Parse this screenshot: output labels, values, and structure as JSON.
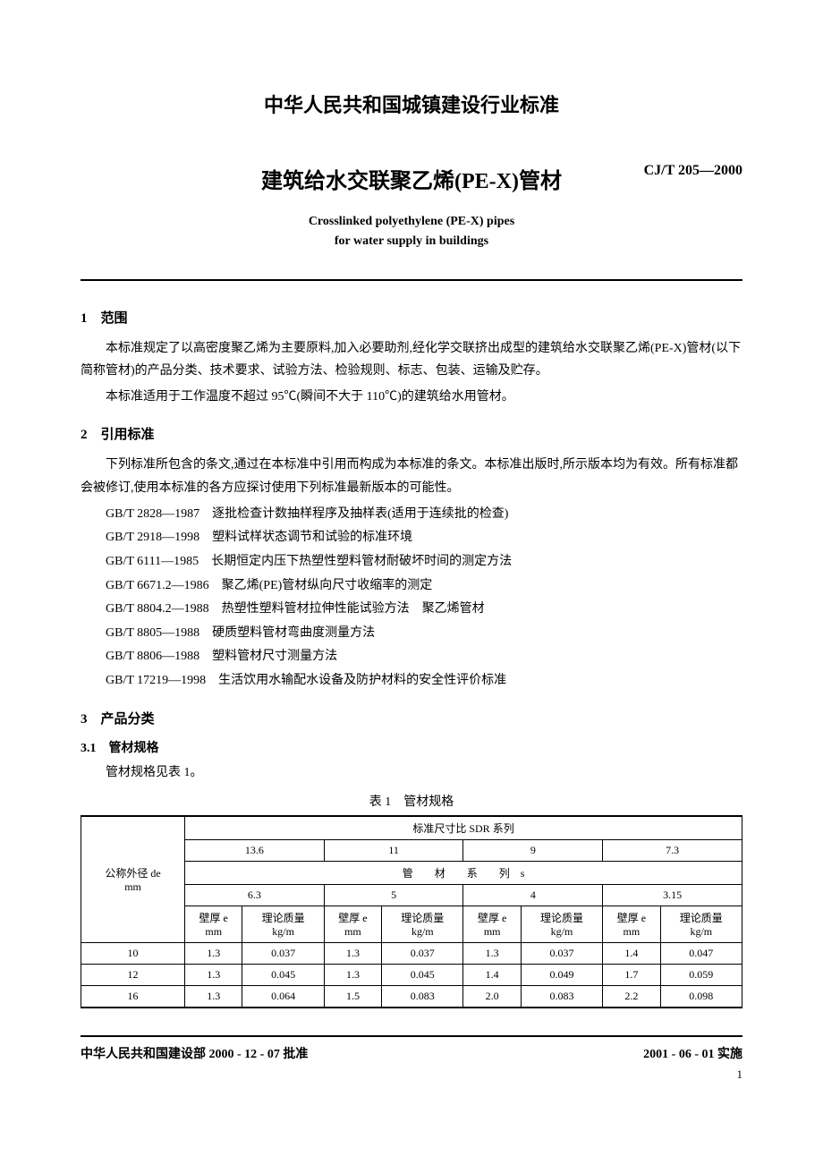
{
  "header": {
    "org_title": "中华人民共和国城镇建设行业标准",
    "main_title": "建筑给水交联聚乙烯(PE-X)管材",
    "standard_code": "CJ/T 205—2000",
    "en_title_line1": "Crosslinked polyethylene (PE-X) pipes",
    "en_title_line2": "for water supply in buildings"
  },
  "s1": {
    "heading": "1　范围",
    "p1": "本标准规定了以高密度聚乙烯为主要原料,加入必要助剂,经化学交联挤出成型的建筑给水交联聚乙烯(PE-X)管材(以下简称管材)的产品分类、技术要求、试验方法、检验规则、标志、包装、运输及贮存。",
    "p2": "本标准适用于工作温度不超过 95℃(瞬间不大于 110℃)的建筑给水用管材。"
  },
  "s2": {
    "heading": "2　引用标准",
    "p1": "下列标准所包含的条文,通过在本标准中引用而构成为本标准的条文。本标准出版时,所示版本均为有效。所有标准都会被修订,使用本标准的各方应探讨使用下列标准最新版本的可能性。",
    "refs": [
      "GB/T 2828—1987　逐批检查计数抽样程序及抽样表(适用于连续批的检查)",
      "GB/T 2918—1998　塑料试样状态调节和试验的标准环境",
      "GB/T 6111—1985　长期恒定内压下热塑性塑料管材耐破坏时间的测定方法",
      "GB/T 6671.2—1986　聚乙烯(PE)管材纵向尺寸收缩率的测定",
      "GB/T 8804.2—1988　热塑性塑料管材拉伸性能试验方法　聚乙烯管材",
      "GB/T 8805—1988　硬质塑料管材弯曲度测量方法",
      "GB/T 8806—1988　塑料管材尺寸测量方法",
      "GB/T 17219—1998　生活饮用水输配水设备及防护材料的安全性评价标准"
    ]
  },
  "s3": {
    "heading": "3　产品分类",
    "sub1": "3.1　管材规格",
    "sub1_text": "管材规格见表 1。",
    "table_caption": "表 1　管材规格"
  },
  "table": {
    "rowhead_line1": "公称外径 de",
    "rowhead_line2": "mm",
    "sdr_header": "标准尺寸比 SDR 系列",
    "sdr_values": [
      "13.6",
      "11",
      "9",
      "7.3"
    ],
    "series_header": "管　　材　　系　　列　s",
    "series_values": [
      "6.3",
      "5",
      "4",
      "3.15"
    ],
    "col_wall_line1": "壁厚 e",
    "col_wall_line2": "mm",
    "col_mass_line1": "理论质量",
    "col_mass_line2": "kg/m",
    "rows": [
      {
        "de": "10",
        "cells": [
          "1.3",
          "0.037",
          "1.3",
          "0.037",
          "1.3",
          "0.037",
          "1.4",
          "0.047"
        ]
      },
      {
        "de": "12",
        "cells": [
          "1.3",
          "0.045",
          "1.3",
          "0.045",
          "1.4",
          "0.049",
          "1.7",
          "0.059"
        ]
      },
      {
        "de": "16",
        "cells": [
          "1.3",
          "0.064",
          "1.5",
          "0.083",
          "2.0",
          "0.083",
          "2.2",
          "0.098"
        ]
      }
    ]
  },
  "footer": {
    "approval": "中华人民共和国建设部 2000 - 12 - 07 批准",
    "implement": "2001 - 06 - 01 实施",
    "page": "1"
  }
}
